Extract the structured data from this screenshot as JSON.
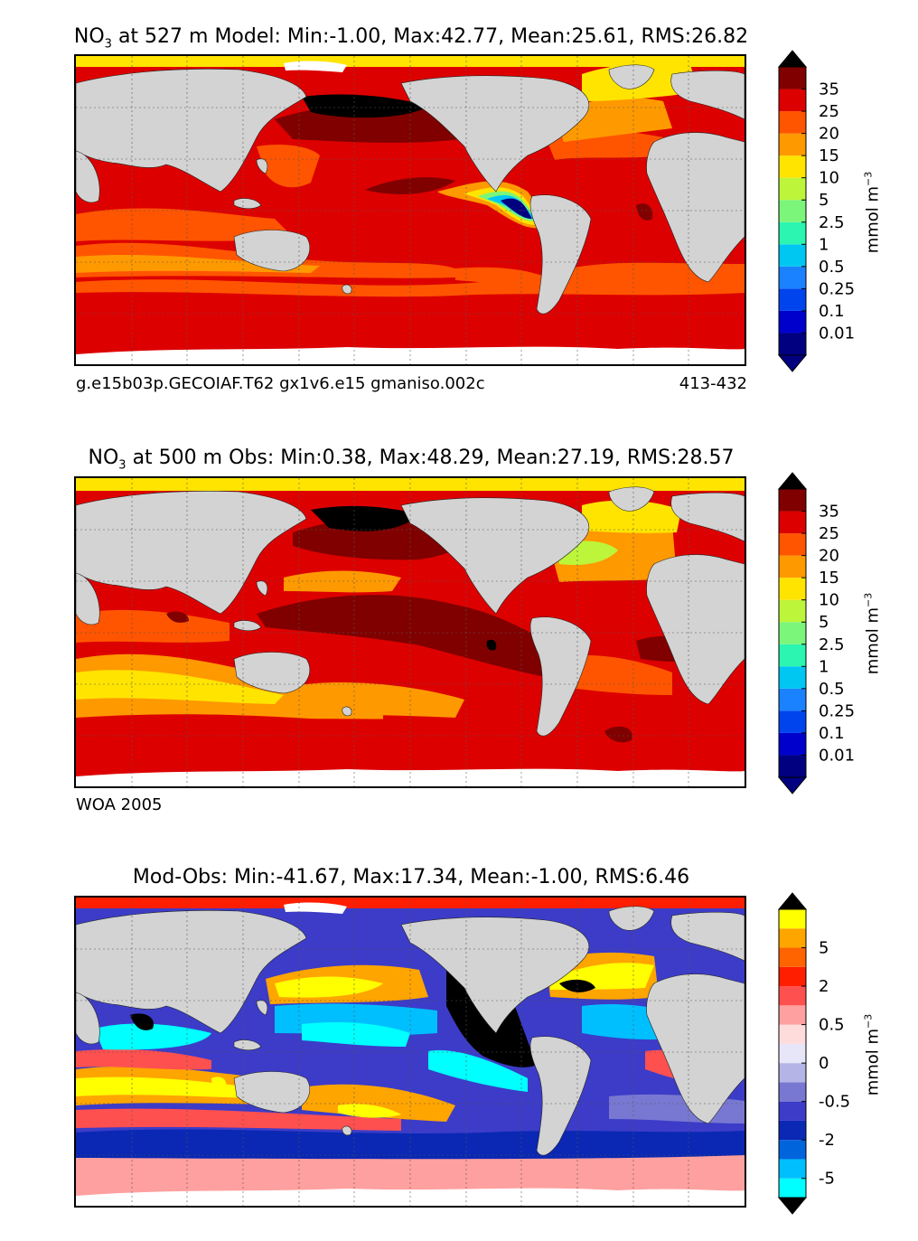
{
  "chart_data": [
    {
      "type": "heatmap",
      "title_prefix": "NO",
      "title_sub": "3",
      "title_rest": " at 527 m Model: Min:-1.00, Max:42.77, Mean:25.61, RMS:26.82",
      "stats": {
        "depth_m": 527,
        "source": "Model",
        "min": -1.0,
        "max": 42.77,
        "mean": 25.61,
        "rms": 26.82
      },
      "caption_left": "g.e15b03p.GECOIAF.T62 gx1v6.e15 gmaniso.002c",
      "caption_right": "413-432",
      "colorbar": {
        "unit_main": "mmol m",
        "unit_sup": "−3",
        "ticks": [
          "0.01",
          "0.1",
          "0.25",
          "0.5",
          "1",
          "2.5",
          "5",
          "10",
          "15",
          "20",
          "25",
          "35"
        ],
        "colors": [
          "#000080",
          "#0000cd",
          "#0044ee",
          "#1b82ff",
          "#00c6f2",
          "#2bf5b0",
          "#7bf57a",
          "#bdf53a",
          "#ffe400",
          "#ff9900",
          "#ff5500",
          "#dd0000",
          "#800000"
        ],
        "under_color": "#000080",
        "over_color": "#000000"
      },
      "colors": {
        "land": "#d3d3d3",
        "ice": "#ffffff",
        "dominant_ocean": "#dd0000"
      }
    },
    {
      "type": "heatmap",
      "title_prefix": "NO",
      "title_sub": "3",
      "title_rest": " at 500 m Obs: Min:0.38, Max:48.29, Mean:27.19, RMS:28.57",
      "stats": {
        "depth_m": 500,
        "source": "Obs",
        "min": 0.38,
        "max": 48.29,
        "mean": 27.19,
        "rms": 28.57
      },
      "caption_left": "WOA 2005",
      "colorbar": {
        "unit_main": "mmol m",
        "unit_sup": "−3",
        "ticks": [
          "0.01",
          "0.1",
          "0.25",
          "0.5",
          "1",
          "2.5",
          "5",
          "10",
          "15",
          "20",
          "25",
          "35"
        ],
        "colors": [
          "#000080",
          "#0000cd",
          "#0044ee",
          "#1b82ff",
          "#00c6f2",
          "#2bf5b0",
          "#7bf57a",
          "#bdf53a",
          "#ffe400",
          "#ff9900",
          "#ff5500",
          "#dd0000",
          "#800000"
        ],
        "under_color": "#000080",
        "over_color": "#000000"
      },
      "colors": {
        "land": "#d3d3d3",
        "ice": "#ffffff",
        "dominant_ocean": "#dd0000"
      }
    },
    {
      "type": "heatmap",
      "title_prefix": "Mod-Obs",
      "title_sub": "",
      "title_rest": ": Min:-41.67, Max:17.34, Mean:-1.00, RMS:6.46",
      "stats": {
        "min": -41.67,
        "max": 17.34,
        "mean": -1.0,
        "rms": 6.46
      },
      "colorbar": {
        "unit_main": "mmol m",
        "unit_sup": "−3",
        "ticks": [
          "-5",
          "",
          "-2",
          "",
          "-0.5",
          "",
          "0",
          "",
          "0.5",
          "",
          "2",
          "",
          "5"
        ],
        "colors": [
          "#00ffff",
          "#00bfff",
          "#0064dc",
          "#0a28b4",
          "#3c3cc8",
          "#7878d2",
          "#b4b4e6",
          "#e6e6f8",
          "#ffdcdc",
          "#ffa0a0",
          "#ff5050",
          "#ff1e00",
          "#ff6400",
          "#ffa500",
          "#ffff00"
        ],
        "under_color": "#000000",
        "over_color": "#000000"
      },
      "colors": {
        "land": "#d3d3d3",
        "ice": "#ffffff",
        "dominant_ocean": "#3c3cc8"
      }
    }
  ]
}
